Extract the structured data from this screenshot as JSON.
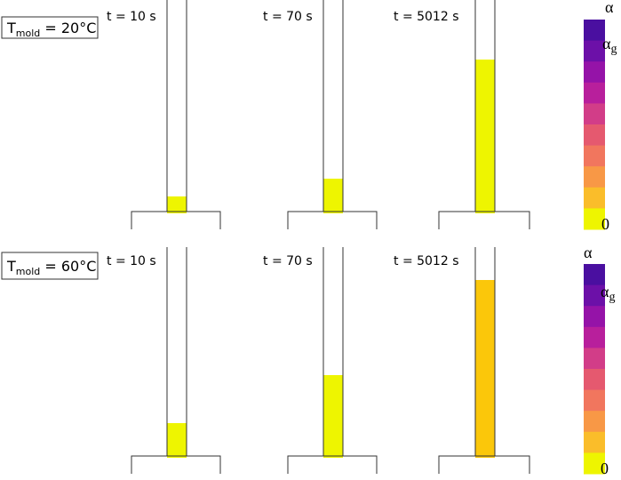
{
  "rows": [
    {
      "label": {
        "main": "T",
        "sub": "mold",
        "rest": " = 20°C"
      },
      "times": [
        "t = 10 s",
        "t = 70 s",
        "t = 5012 s"
      ]
    },
    {
      "label": {
        "main": "T",
        "sub": "mold",
        "rest": " = 60°C"
      },
      "times": [
        "t = 10 s",
        "t = 70 s",
        "t = 5012 s"
      ]
    }
  ],
  "colorbar": {
    "top": "α",
    "mid": {
      "main": "α",
      "sub": "g"
    },
    "bottom": "0"
  }
}
